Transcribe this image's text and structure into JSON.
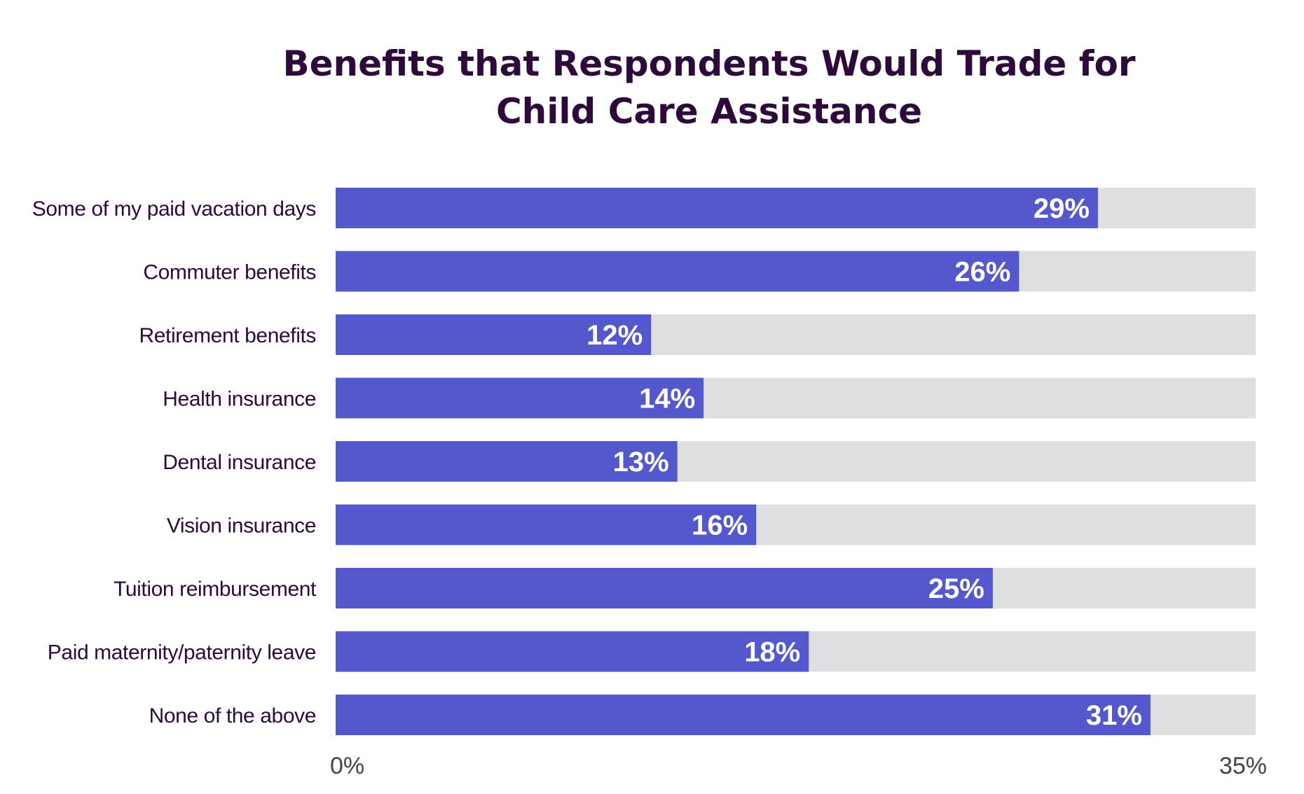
{
  "chart_data": {
    "type": "bar",
    "orientation": "horizontal",
    "title": "Benefits that Respondents Would Trade for Child Care Assistance",
    "title_lines": [
      "Benefits that Respondents Would Trade for",
      "Child Care Assistance"
    ],
    "categories": [
      "Some of my paid vacation days",
      "Commuter benefits",
      "Retirement benefits",
      "Health insurance",
      "Dental insurance",
      "Vision insurance",
      "Tuition reimbursement",
      "Paid maternity/paternity leave",
      "None of the above"
    ],
    "values": [
      29,
      26,
      12,
      14,
      13,
      16,
      25,
      18,
      31
    ],
    "value_labels": [
      "29%",
      "26%",
      "12%",
      "14%",
      "13%",
      "16%",
      "25%",
      "18%",
      "31%"
    ],
    "xlim": [
      0,
      35
    ],
    "x_tick_labels": [
      "0%",
      "35%"
    ],
    "xlabel": "",
    "ylabel": "",
    "grid": false,
    "legend": "none",
    "colors": {
      "bar": "#5558cc",
      "track": "#dfdfe1",
      "title": "#2e0a3a",
      "category_text": "#2e0a3a",
      "value_text": "#ffffff",
      "tick_text": "#444444"
    }
  }
}
